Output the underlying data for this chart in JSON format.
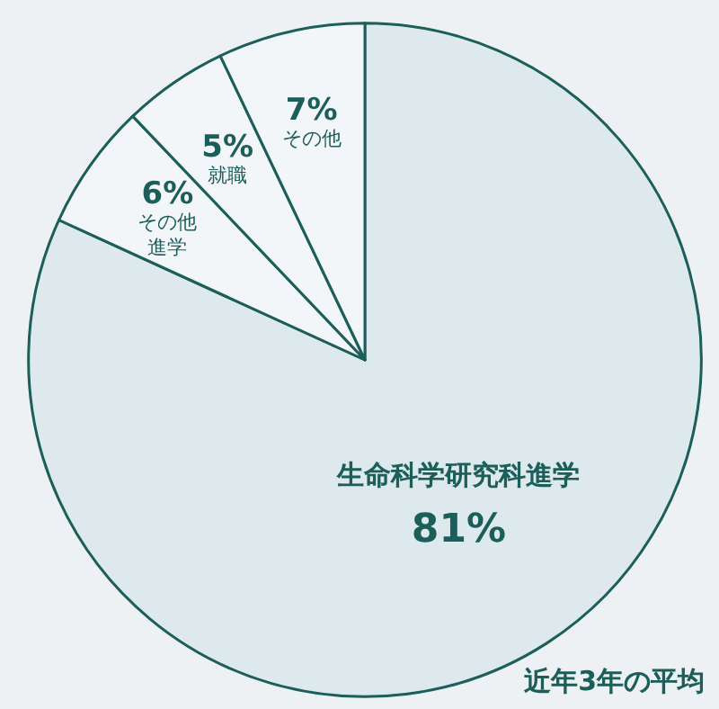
{
  "chart_data": {
    "type": "pie",
    "categories": [
      "生命科学研究科進学",
      "その他進学",
      "就職",
      "その他"
    ],
    "values": [
      81,
      6,
      5,
      7
    ],
    "colors": [
      "#dde9ed",
      "#f3f6f8",
      "#f3f6f8",
      "#f3f6f8"
    ],
    "value_labels": [
      "81%",
      "6%",
      "5%",
      "7%"
    ],
    "annotations": [
      "近年3年の平均"
    ]
  }
}
